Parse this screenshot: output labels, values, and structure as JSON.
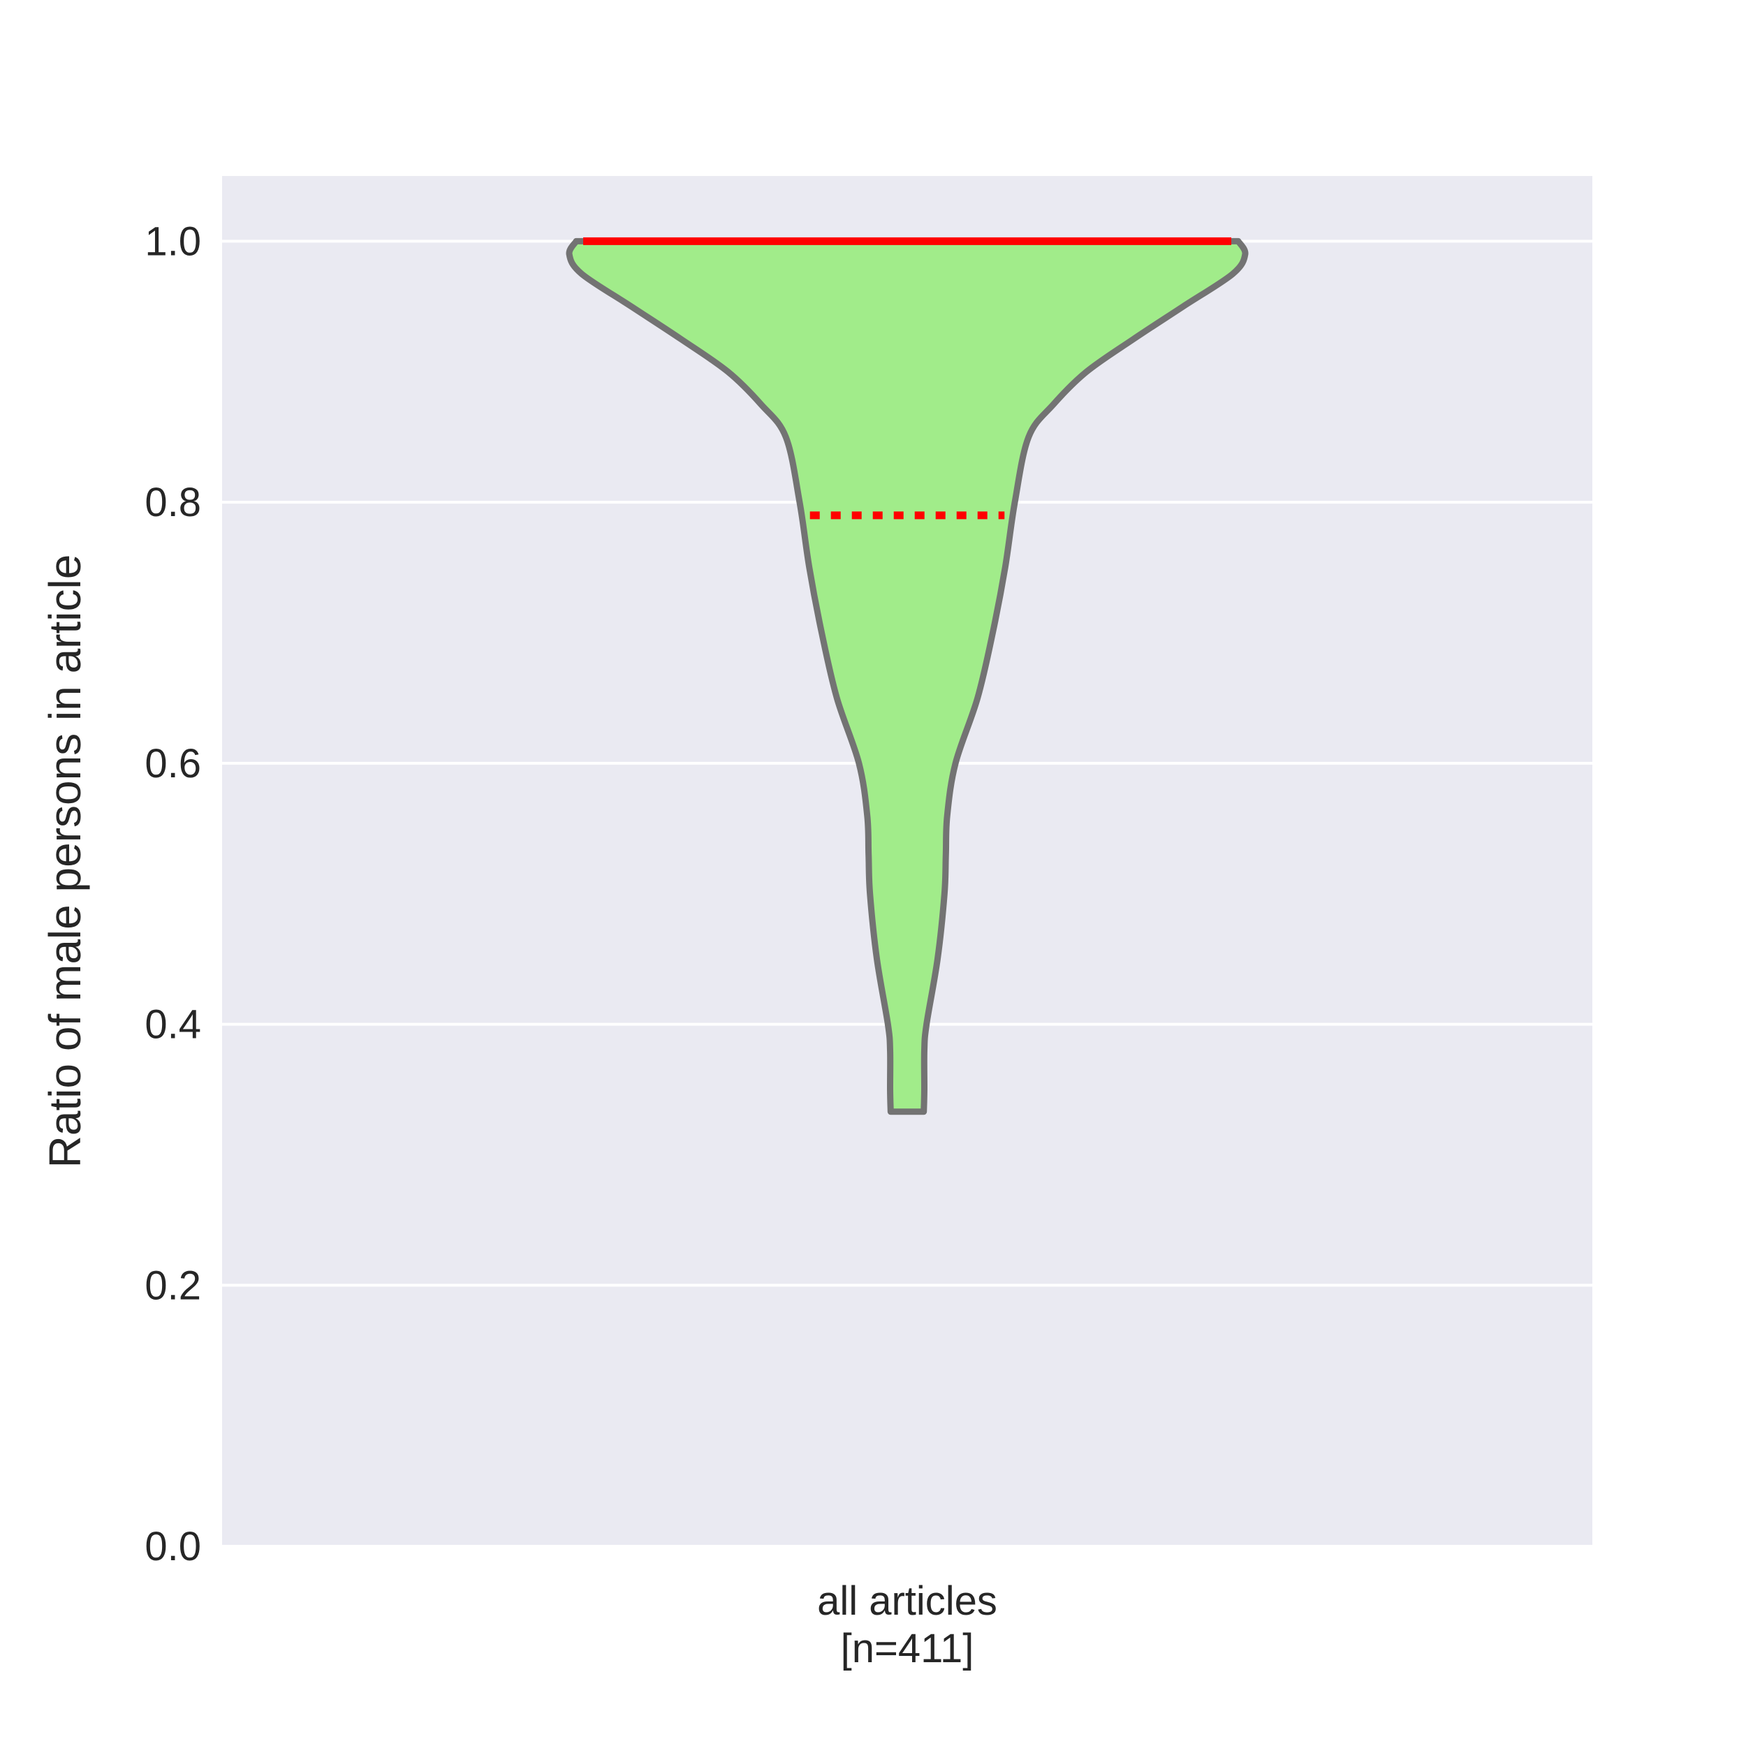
{
  "chart_data": {
    "type": "violin",
    "title": "",
    "ylabel": "Ratio of male persons in article",
    "ylim": [
      0.0,
      1.05
    ],
    "yticks": [
      "0.0",
      "0.2",
      "0.4",
      "0.6",
      "0.8",
      "1.0"
    ],
    "grid": true,
    "categories": [
      {
        "label_line1": "all articles",
        "label_line2": "[n=411]"
      }
    ],
    "violin": {
      "min": 0.333,
      "max": 1.0,
      "median": 1.0,
      "mean": 0.79,
      "density_profile": [
        [
          0.333,
          0.06
        ],
        [
          0.35,
          0.062
        ],
        [
          0.38,
          0.062
        ],
        [
          0.4,
          0.07
        ],
        [
          0.45,
          0.11
        ],
        [
          0.5,
          0.135
        ],
        [
          0.53,
          0.14
        ],
        [
          0.56,
          0.145
        ],
        [
          0.6,
          0.175
        ],
        [
          0.65,
          0.255
        ],
        [
          0.7,
          0.31
        ],
        [
          0.75,
          0.355
        ],
        [
          0.8,
          0.39
        ],
        [
          0.85,
          0.44
        ],
        [
          0.875,
          0.53
        ],
        [
          0.9,
          0.65
        ],
        [
          0.925,
          0.82
        ],
        [
          0.95,
          1.0
        ],
        [
          0.975,
          1.18
        ],
        [
          0.99,
          1.225
        ],
        [
          1.0,
          1.2
        ]
      ],
      "fill_color": "#a1ec8a",
      "outline_color": "#737373",
      "median_color": "#ff0000",
      "mean_color": "#ff0000"
    },
    "colors": {
      "background": "#eaeaf2",
      "grid": "#ffffff"
    }
  }
}
